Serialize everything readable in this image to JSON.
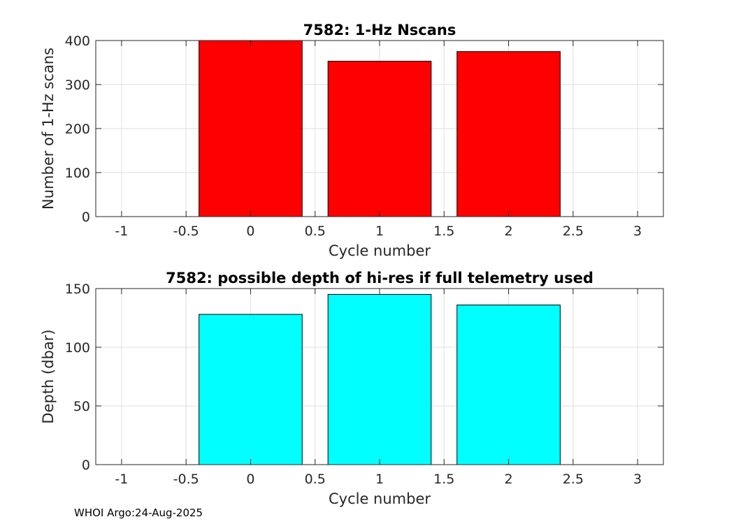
{
  "chart_data": [
    {
      "type": "bar",
      "title": "7582: 1-Hz Nscans",
      "xlabel": "Cycle number",
      "ylabel": "Number of 1-Hz scans",
      "x": [
        0,
        1,
        2
      ],
      "values": [
        400,
        353,
        375
      ],
      "bar_width": 0.8,
      "xlim": [
        -1.2,
        3.2
      ],
      "ylim": [
        0,
        400
      ],
      "xticks": [
        -1,
        -0.5,
        0,
        0.5,
        1,
        1.5,
        2,
        2.5,
        3
      ],
      "xtick_labels": [
        "-1",
        "-0.5",
        "0",
        "0.5",
        "1",
        "1.5",
        "2",
        "2.5",
        "3"
      ],
      "yticks": [
        0,
        100,
        200,
        300,
        400
      ],
      "ytick_labels": [
        "0",
        "100",
        "200",
        "300",
        "400"
      ],
      "bar_color": "#ff0000",
      "grid": true
    },
    {
      "type": "bar",
      "title": "7582: possible depth of hi-res if full telemetry used",
      "xlabel": "Cycle number",
      "ylabel": "Depth (dbar)",
      "x": [
        0,
        1,
        2
      ],
      "values": [
        128,
        145,
        136
      ],
      "bar_width": 0.8,
      "xlim": [
        -1.2,
        3.2
      ],
      "ylim": [
        0,
        150
      ],
      "xticks": [
        -1,
        -0.5,
        0,
        0.5,
        1,
        1.5,
        2,
        2.5,
        3
      ],
      "xtick_labels": [
        "-1",
        "-0.5",
        "0",
        "0.5",
        "1",
        "1.5",
        "2",
        "2.5",
        "3"
      ],
      "yticks": [
        0,
        50,
        100,
        150
      ],
      "ytick_labels": [
        "0",
        "50",
        "100",
        "150"
      ],
      "bar_color": "#00ffff",
      "grid": true
    }
  ],
  "footer": "WHOI Argo:24-Aug-2025"
}
